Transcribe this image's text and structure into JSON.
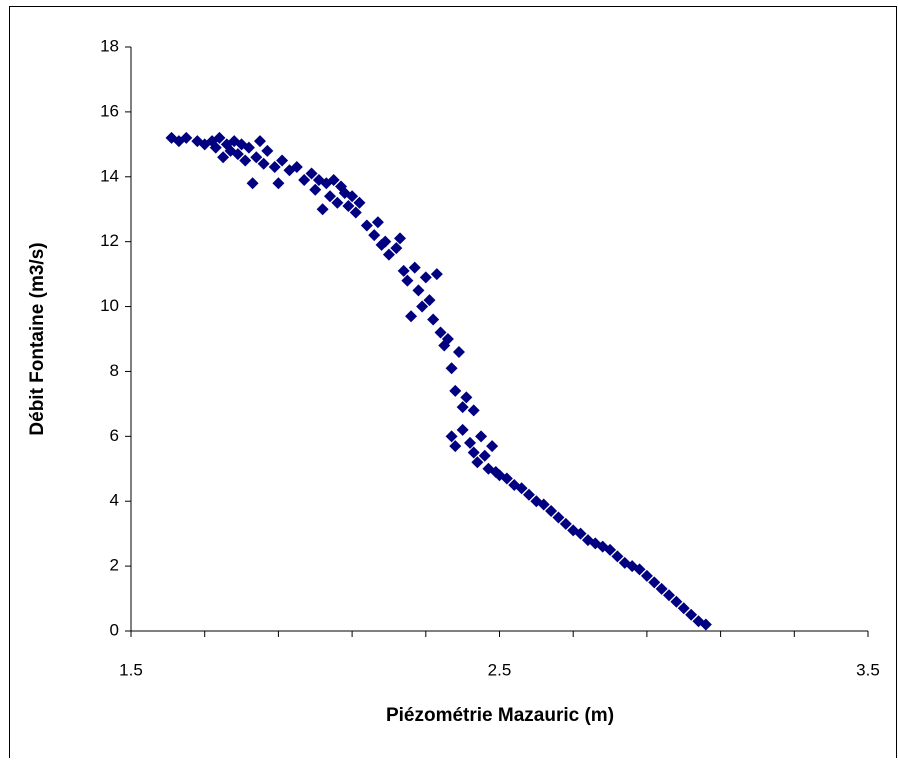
{
  "chart_data": {
    "type": "scatter",
    "x_label": "Piézométrie Mazauric (m)",
    "y_label": "Débit Fontaine (m3/s)",
    "color": "#000080",
    "xlim": [
      1.5,
      3.5
    ],
    "ylim": [
      0,
      18
    ],
    "xticks": [
      1.5,
      2.5,
      3.5
    ],
    "xminorticks": [
      1.7,
      1.9,
      2.1,
      2.3,
      2.7,
      2.9,
      3.1,
      3.3
    ],
    "yticks": [
      0,
      2,
      4,
      6,
      8,
      10,
      12,
      14,
      16,
      18
    ],
    "grid": false,
    "x": [
      1.61,
      1.63,
      1.65,
      1.68,
      1.7,
      1.72,
      1.73,
      1.74,
      1.75,
      1.76,
      1.77,
      1.78,
      1.79,
      1.8,
      1.81,
      1.82,
      1.83,
      1.84,
      1.85,
      1.86,
      1.87,
      1.89,
      1.9,
      1.91,
      1.93,
      1.95,
      1.97,
      1.99,
      2.0,
      2.01,
      2.02,
      2.03,
      2.04,
      2.05,
      2.06,
      2.07,
      2.08,
      2.09,
      2.1,
      2.11,
      2.12,
      2.14,
      2.16,
      2.17,
      2.18,
      2.19,
      2.2,
      2.22,
      2.23,
      2.24,
      2.25,
      2.26,
      2.27,
      2.28,
      2.29,
      2.3,
      2.31,
      2.32,
      2.33,
      2.34,
      2.35,
      2.36,
      2.37,
      2.38,
      2.39,
      2.4,
      2.4,
      2.41,
      2.42,
      2.43,
      2.43,
      2.44,
      2.45,
      2.46,
      2.47,
      2.48,
      2.49,
      2.5,
      2.37,
      2.38,
      2.52,
      2.54,
      2.56,
      2.58,
      2.6,
      2.62,
      2.64,
      2.66,
      2.68,
      2.7,
      2.72,
      2.74,
      2.76,
      2.78,
      2.8,
      2.82,
      2.84,
      2.86,
      2.88,
      2.9,
      2.92,
      2.94,
      2.96,
      2.98,
      3.0,
      3.02,
      3.04,
      3.06
    ],
    "values": [
      15.2,
      15.1,
      15.2,
      15.1,
      15.0,
      15.1,
      14.9,
      15.2,
      14.6,
      15.0,
      14.8,
      15.1,
      14.7,
      15.0,
      14.5,
      14.9,
      13.8,
      14.6,
      15.1,
      14.4,
      14.8,
      14.3,
      13.8,
      14.5,
      14.2,
      14.3,
      13.9,
      14.1,
      13.6,
      13.9,
      13.0,
      13.8,
      13.4,
      13.9,
      13.2,
      13.7,
      13.5,
      13.1,
      13.4,
      12.9,
      13.2,
      12.5,
      12.2,
      12.6,
      11.9,
      12.0,
      11.6,
      11.8,
      12.1,
      11.1,
      10.8,
      9.7,
      11.2,
      10.5,
      10.0,
      10.9,
      10.2,
      9.6,
      11.0,
      9.2,
      8.8,
      9.0,
      8.1,
      7.4,
      8.6,
      6.9,
      6.2,
      7.2,
      5.8,
      5.5,
      6.8,
      5.2,
      6.0,
      5.4,
      5.0,
      5.7,
      4.9,
      4.8,
      6.0,
      5.7,
      4.7,
      4.5,
      4.4,
      4.2,
      4.0,
      3.9,
      3.7,
      3.5,
      3.3,
      3.1,
      3.0,
      2.8,
      2.7,
      2.6,
      2.5,
      2.3,
      2.1,
      2.0,
      1.9,
      1.7,
      1.5,
      1.3,
      1.1,
      0.9,
      0.7,
      0.5,
      0.3,
      0.2
    ]
  }
}
